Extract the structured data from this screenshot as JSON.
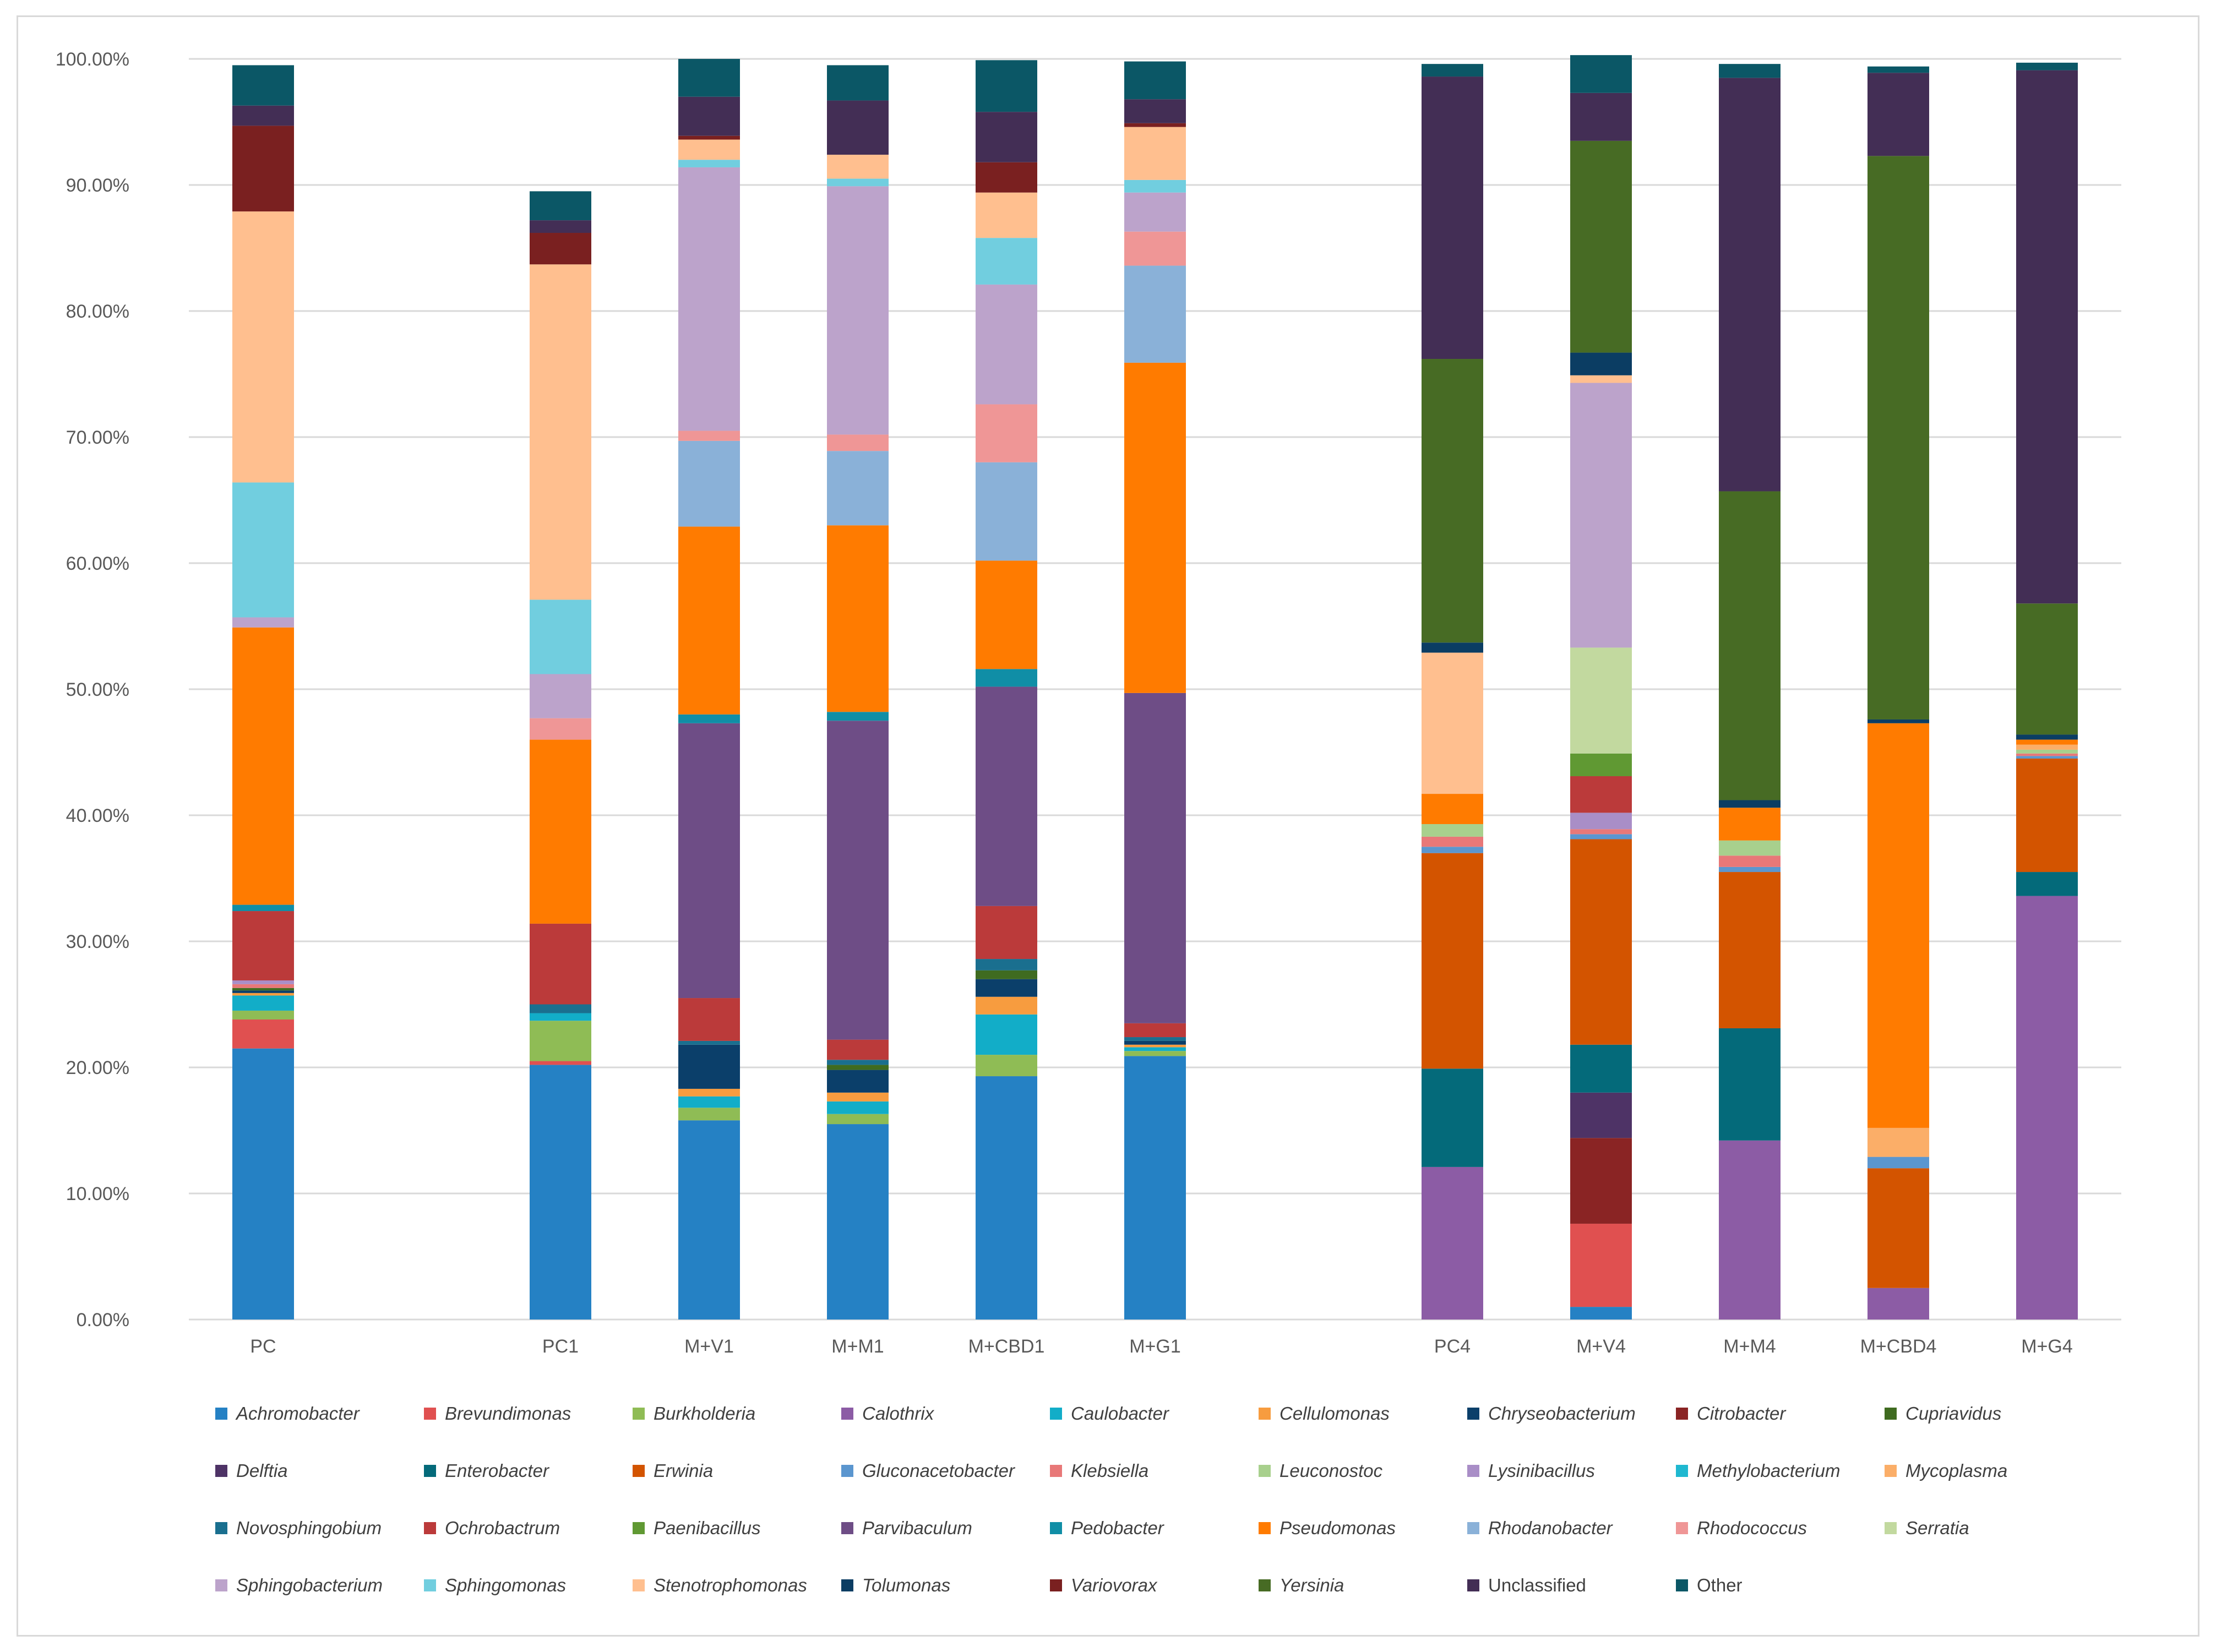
{
  "chart_data": {
    "type": "bar",
    "stacked": true,
    "title": "",
    "xlabel": "",
    "ylabel": "",
    "ylim": [
      0,
      100
    ],
    "y_ticks": [
      "0.00%",
      "10.00%",
      "20.00%",
      "30.00%",
      "40.00%",
      "50.00%",
      "60.00%",
      "70.00%",
      "80.00%",
      "90.00%",
      "100.00%"
    ],
    "grid": true,
    "legend_position": "bottom",
    "categories": [
      "PC",
      "",
      "PC1",
      "M+V1",
      "M+M1",
      "M+CBD1",
      "M+G1",
      "",
      "PC4",
      "M+V4",
      "M+M4",
      "M+CBD4",
      "M+G4"
    ],
    "series": [
      {
        "name": "Achromobacter",
        "color": "#2581c4",
        "italic": true,
        "values": [
          21.5,
          0,
          20.2,
          15.8,
          15.5,
          19.3,
          20.9,
          0,
          0,
          1.0,
          0,
          0,
          0
        ]
      },
      {
        "name": "Brevundimonas",
        "color": "#e05050",
        "italic": true,
        "values": [
          2.3,
          0,
          0.3,
          0,
          0,
          0,
          0,
          0,
          0,
          6.6,
          0,
          0,
          0
        ]
      },
      {
        "name": "Burkholderia",
        "color": "#8fbc55",
        "italic": true,
        "values": [
          0.7,
          0,
          3.2,
          1.0,
          0.8,
          1.7,
          0.4,
          0,
          0,
          0,
          0,
          0,
          0
        ]
      },
      {
        "name": "Calothrix",
        "color": "#8c5ca5",
        "italic": true,
        "values": [
          0,
          0,
          0,
          0,
          0,
          0,
          0,
          0,
          12.1,
          0,
          14.2,
          2.5,
          33.6
        ]
      },
      {
        "name": "Caulobacter",
        "color": "#12adc8",
        "italic": true,
        "values": [
          1.2,
          0,
          0.6,
          0.9,
          1.0,
          3.2,
          0.3,
          0,
          0,
          0,
          0,
          0,
          0
        ]
      },
      {
        "name": "Cellulomonas",
        "color": "#f79c3f",
        "italic": true,
        "values": [
          0.2,
          0,
          0,
          0.6,
          0.7,
          1.4,
          0.2,
          0,
          0,
          0,
          0,
          0,
          0
        ]
      },
      {
        "name": "Chryseobacterium",
        "color": "#0b3f6a",
        "italic": true,
        "values": [
          0.2,
          0,
          0,
          3.5,
          1.8,
          1.4,
          0.3,
          0,
          0,
          0,
          0,
          0,
          0
        ]
      },
      {
        "name": "Citrobacter",
        "color": "#8a2424",
        "italic": true,
        "values": [
          0,
          0,
          0,
          0,
          0,
          0,
          0,
          0,
          0,
          6.8,
          0,
          0,
          0
        ]
      },
      {
        "name": "Cupriavidus",
        "color": "#3f6b20",
        "italic": true,
        "values": [
          0.2,
          0,
          0,
          0,
          0.4,
          0.7,
          0,
          0,
          0,
          0,
          0,
          0,
          0
        ]
      },
      {
        "name": "Delftia",
        "color": "#4e3366",
        "italic": true,
        "values": [
          0,
          0,
          0,
          0,
          0,
          0,
          0,
          0,
          0,
          3.6,
          0,
          0,
          0
        ]
      },
      {
        "name": "Enterobacter",
        "color": "#046a7a",
        "italic": true,
        "values": [
          0,
          0,
          0,
          0,
          0,
          0,
          0,
          0,
          7.8,
          3.8,
          8.9,
          0,
          1.9
        ]
      },
      {
        "name": "Erwinia",
        "color": "#d35400",
        "italic": true,
        "values": [
          0,
          0,
          0,
          0,
          0,
          0,
          0,
          0,
          17.1,
          16.3,
          12.4,
          9.5,
          9.0
        ]
      },
      {
        "name": "Gluconacetobacter",
        "color": "#5b96cf",
        "italic": true,
        "values": [
          0,
          0,
          0,
          0,
          0,
          0,
          0,
          0,
          0.5,
          0.4,
          0.4,
          0.9,
          0.2
        ]
      },
      {
        "name": "Klebsiella",
        "color": "#e87878",
        "italic": true,
        "values": [
          0.3,
          0,
          0,
          0,
          0,
          0,
          0,
          0,
          0.8,
          0.4,
          0.9,
          0,
          0.2
        ]
      },
      {
        "name": "Leuconostoc",
        "color": "#a8d08d",
        "italic": true,
        "values": [
          0,
          0,
          0,
          0,
          0,
          0,
          0,
          0,
          1.0,
          0,
          1.2,
          0,
          0.3
        ]
      },
      {
        "name": "Lysinibacillus",
        "color": "#a98ec7",
        "italic": true,
        "values": [
          0.3,
          0,
          0,
          0,
          0,
          0,
          0,
          0,
          0,
          1.3,
          0,
          0,
          0
        ]
      },
      {
        "name": "Methylobacterium",
        "color": "#1fb8d0",
        "italic": true,
        "values": [
          0,
          0,
          0,
          0,
          0,
          0,
          0,
          0,
          0,
          0,
          0,
          0,
          0
        ]
      },
      {
        "name": "Mycoplasma",
        "color": "#fbae68",
        "italic": true,
        "values": [
          0,
          0,
          0,
          0,
          0,
          0,
          0,
          0,
          0,
          0,
          0,
          2.3,
          0.4
        ]
      },
      {
        "name": "Novosphingobium",
        "color": "#1a6f8f",
        "italic": true,
        "values": [
          0,
          0,
          0.7,
          0.3,
          0.4,
          0.9,
          0.3,
          0,
          0,
          0,
          0,
          0,
          0
        ]
      },
      {
        "name": "Ochrobactrum",
        "color": "#bb3a3a",
        "italic": true,
        "values": [
          5.5,
          0,
          6.4,
          3.4,
          1.6,
          4.2,
          1.1,
          0,
          0,
          2.9,
          0,
          0,
          0
        ]
      },
      {
        "name": "Paenibacillus",
        "color": "#609933",
        "italic": true,
        "values": [
          0,
          0,
          0,
          0,
          0,
          0,
          0,
          0,
          0,
          1.8,
          0,
          0,
          0
        ]
      },
      {
        "name": "Parvibaculum",
        "color": "#6e4d86",
        "italic": true,
        "values": [
          0,
          0,
          0,
          21.8,
          25.3,
          17.4,
          26.2,
          0,
          0,
          0,
          0,
          0,
          0
        ]
      },
      {
        "name": "Pedobacter",
        "color": "#108ea6",
        "italic": true,
        "values": [
          0.5,
          0,
          0,
          0.7,
          0.7,
          1.4,
          0,
          0,
          0,
          0,
          0,
          0,
          0
        ]
      },
      {
        "name": "Pseudomonas",
        "color": "#ff7b00",
        "italic": true,
        "values": [
          22.0,
          0,
          14.6,
          14.9,
          14.8,
          8.6,
          26.2,
          0,
          2.4,
          0,
          2.6,
          32.1,
          0.4
        ]
      },
      {
        "name": "Rhodanobacter",
        "color": "#8ab1d8",
        "italic": true,
        "values": [
          0,
          0,
          0,
          6.8,
          5.9,
          7.8,
          7.7,
          0,
          0,
          0,
          0,
          0,
          0
        ]
      },
      {
        "name": "Rhodococcus",
        "color": "#ef9696",
        "italic": true,
        "values": [
          0,
          0,
          1.7,
          0.8,
          1.3,
          4.6,
          2.7,
          0,
          0,
          0,
          0,
          0,
          0
        ]
      },
      {
        "name": "Serratia",
        "color": "#c2d99f",
        "italic": true,
        "values": [
          0,
          0,
          0,
          0,
          0,
          0,
          0,
          0,
          0,
          8.4,
          0,
          0,
          0
        ]
      },
      {
        "name": "Sphingobacterium",
        "color": "#bca3cb",
        "italic": true,
        "values": [
          0.8,
          0,
          3.5,
          20.9,
          19.7,
          9.5,
          3.1,
          0,
          0,
          21.0,
          0,
          0,
          0
        ]
      },
      {
        "name": "Sphingomonas",
        "color": "#71cedf",
        "italic": true,
        "values": [
          10.7,
          0,
          5.9,
          0.6,
          0.6,
          3.7,
          1.0,
          0,
          0,
          0,
          0,
          0,
          0
        ]
      },
      {
        "name": "Stenotrophomonas",
        "color": "#ffbf8f",
        "italic": true,
        "values": [
          21.5,
          0,
          26.6,
          1.6,
          1.9,
          3.6,
          4.2,
          0,
          11.2,
          0.6,
          0,
          0,
          0
        ]
      },
      {
        "name": "Tolumonas",
        "color": "#0b3d63",
        "italic": true,
        "values": [
          0,
          0,
          0,
          0,
          0,
          0,
          0,
          0,
          0.8,
          1.8,
          0.6,
          0.3,
          0.4
        ]
      },
      {
        "name": "Variovorax",
        "color": "#7a2020",
        "italic": true,
        "values": [
          6.8,
          0,
          2.5,
          0.3,
          0,
          2.4,
          0.3,
          0,
          0,
          0,
          0,
          0,
          0
        ]
      },
      {
        "name": "Yersinia",
        "color": "#476b24",
        "italic": true,
        "values": [
          0,
          0,
          0,
          0,
          0,
          0,
          0,
          0,
          22.5,
          16.8,
          24.5,
          44.7,
          10.4
        ]
      },
      {
        "name": "Unclassified",
        "color": "#432e55",
        "italic": false,
        "values": [
          1.6,
          0,
          1.0,
          3.1,
          4.3,
          4.0,
          1.9,
          0,
          22.4,
          3.8,
          32.8,
          6.6,
          42.3
        ]
      },
      {
        "name": "Other",
        "color": "#0b5766",
        "italic": false,
        "values": [
          3.2,
          0,
          2.3,
          3.0,
          2.8,
          4.1,
          3.0,
          0,
          1.0,
          3.0,
          1.1,
          0.5,
          0.6
        ]
      }
    ]
  }
}
